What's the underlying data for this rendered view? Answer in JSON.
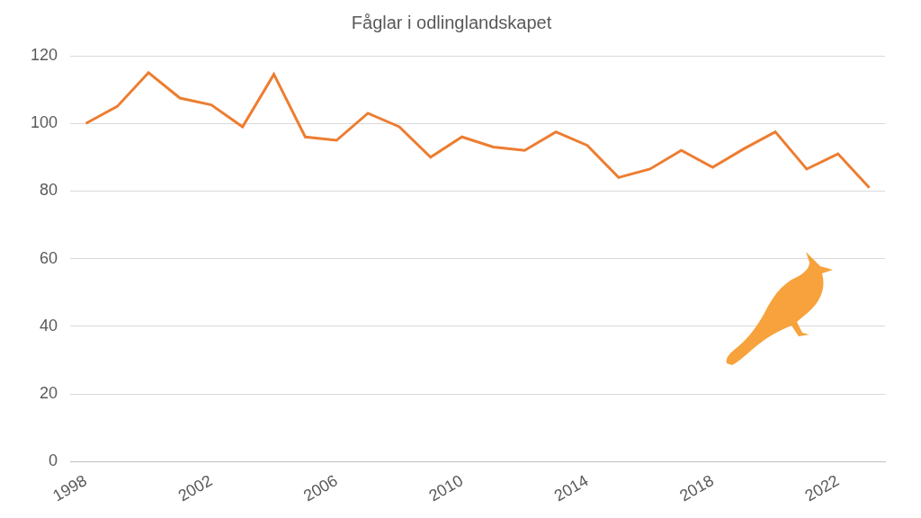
{
  "chart_data": {
    "type": "line",
    "title": "Fåglar i odlinglandskapet",
    "categories": [
      "1998",
      null,
      null,
      null,
      "2002",
      null,
      null,
      null,
      "2006",
      null,
      null,
      null,
      "2010",
      null,
      null,
      null,
      "2014",
      null,
      null,
      null,
      "2018",
      null,
      null,
      null,
      "2022",
      null
    ],
    "values": [
      100,
      105,
      115,
      107.5,
      105.5,
      99,
      114.5,
      96,
      95,
      103,
      99,
      90,
      96,
      93,
      92,
      97.5,
      93.5,
      84,
      86.5,
      92,
      87,
      92.5,
      97.5,
      86.5,
      91,
      81
    ],
    "color": "#ed7d31",
    "ylim": [
      0,
      120
    ],
    "yticks": [
      0,
      20,
      40,
      60,
      80,
      100,
      120
    ],
    "grid": true
  }
}
